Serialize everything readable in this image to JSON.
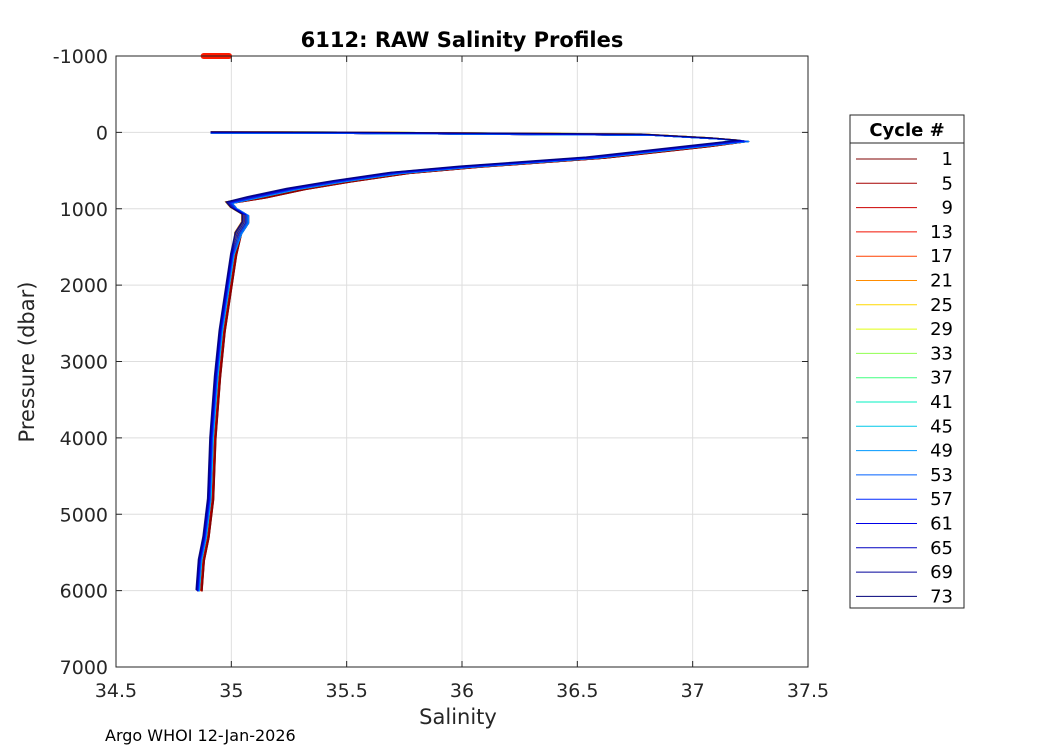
{
  "chart_data": {
    "type": "line",
    "title": "6112: RAW Salinity Profiles",
    "xlabel": "Salinity",
    "ylabel": "Pressure (dbar)",
    "xlim": [
      34.5,
      37.5
    ],
    "ylim": [
      -1000,
      7000
    ],
    "y_reversed": true,
    "grid": true,
    "x_ticks": [
      34.5,
      35,
      35.5,
      36,
      36.5,
      37,
      37.5
    ],
    "x_tick_labels": [
      "34.5",
      "35",
      "35.5",
      "36",
      "36.5",
      "37",
      "37.5"
    ],
    "y_ticks": [
      -1000,
      0,
      1000,
      2000,
      3000,
      4000,
      5000,
      6000,
      7000
    ],
    "y_tick_labels": [
      "-1000",
      "0",
      "1000",
      "2000",
      "3000",
      "4000",
      "5000",
      "6000",
      "7000"
    ],
    "legend": {
      "title": "Cycle #",
      "placement": "right",
      "entries": [
        {
          "label": "1",
          "color": "#7f0000"
        },
        {
          "label": "5",
          "color": "#a50000"
        },
        {
          "label": "9",
          "color": "#cc0000"
        },
        {
          "label": "13",
          "color": "#f21000"
        },
        {
          "label": "17",
          "color": "#ff4000"
        },
        {
          "label": "21",
          "color": "#ff8c00"
        },
        {
          "label": "25",
          "color": "#ffd800"
        },
        {
          "label": "29",
          "color": "#e0ff10"
        },
        {
          "label": "33",
          "color": "#90ff50"
        },
        {
          "label": "37",
          "color": "#40ff80"
        },
        {
          "label": "41",
          "color": "#00f0c0"
        },
        {
          "label": "45",
          "color": "#00c8e8"
        },
        {
          "label": "49",
          "color": "#0098ff"
        },
        {
          "label": "53",
          "color": "#0060ff"
        },
        {
          "label": "57",
          "color": "#0028ff"
        },
        {
          "label": "61",
          "color": "#0000e8"
        },
        {
          "label": "65",
          "color": "#0000c0"
        },
        {
          "label": "69",
          "color": "#00009a"
        },
        {
          "label": "73",
          "color": "#00007a"
        }
      ]
    },
    "base_profile": [
      {
        "s": 34.91,
        "p": 0
      },
      {
        "s": 35.5,
        "p": 5
      },
      {
        "s": 36.8,
        "p": 30
      },
      {
        "s": 37.1,
        "p": 80
      },
      {
        "s": 37.22,
        "p": 110
      },
      {
        "s": 37.0,
        "p": 180
      },
      {
        "s": 36.55,
        "p": 330
      },
      {
        "s": 36.0,
        "p": 450
      },
      {
        "s": 35.7,
        "p": 530
      },
      {
        "s": 35.45,
        "p": 640
      },
      {
        "s": 35.25,
        "p": 740
      },
      {
        "s": 35.08,
        "p": 850
      },
      {
        "s": 34.99,
        "p": 920
      },
      {
        "s": 35.01,
        "p": 990
      },
      {
        "s": 35.06,
        "p": 1080
      },
      {
        "s": 35.06,
        "p": 1180
      },
      {
        "s": 35.03,
        "p": 1320
      },
      {
        "s": 35.0,
        "p": 1600
      },
      {
        "s": 34.98,
        "p": 2000
      },
      {
        "s": 34.95,
        "p": 2600
      },
      {
        "s": 34.93,
        "p": 3200
      },
      {
        "s": 34.91,
        "p": 4000
      },
      {
        "s": 34.9,
        "p": 4800
      },
      {
        "s": 34.88,
        "p": 5300
      },
      {
        "s": 34.86,
        "p": 5600
      },
      {
        "s": 34.85,
        "p": 6000
      }
    ],
    "outlier_marks": [
      {
        "s": 34.88,
        "p": -1000
      },
      {
        "s": 34.99,
        "p": -1000
      }
    ],
    "outlier_color": "#ff1a00"
  },
  "footer": {
    "text": "Argo WHOI 12-Jan-2026"
  }
}
